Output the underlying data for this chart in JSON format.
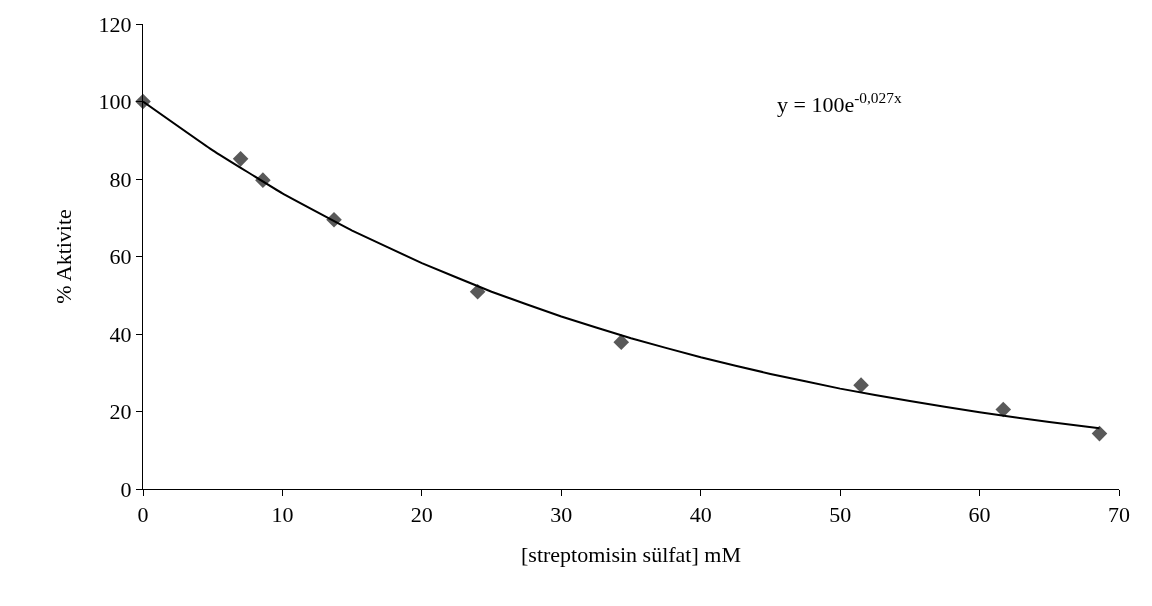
{
  "chart_data": {
    "type": "scatter",
    "xlabel": "[streptomisin sülfat] mM",
    "ylabel": "% Aktivite",
    "annotations": [
      "y = 100e$^{-0,027x}$"
    ],
    "marker": "diamond",
    "grid": false,
    "xlim": [
      0,
      70
    ],
    "xticks": [
      0,
      10,
      20,
      30,
      40,
      50,
      60,
      70
    ],
    "ylim": [
      0,
      120
    ],
    "yticks": [
      0,
      20,
      40,
      60,
      80,
      100,
      120
    ],
    "series": [
      {
        "color": "#595959",
        "x": [
          0,
          7,
          8.6,
          13.7,
          24,
          34.3,
          51.5,
          61.7,
          68.6
        ],
        "values": [
          100,
          85.2,
          79.7,
          69.5,
          50.9,
          37.9,
          26.8,
          20.5,
          14.3
        ]
      },
      {
        "type": "line",
        "color": "#000000",
        "line_style": "solid",
        "marker": "none",
        "x": [
          0,
          5,
          10,
          15,
          20,
          25,
          30,
          35,
          40,
          45,
          50,
          55,
          60,
          65,
          68.6
        ],
        "values": [
          100,
          87.4,
          76.3,
          66.7,
          58.3,
          50.9,
          44.5,
          38.9,
          34.0,
          29.7,
          25.9,
          22.7,
          19.8,
          17.3,
          15.7
        ]
      }
    ]
  }
}
